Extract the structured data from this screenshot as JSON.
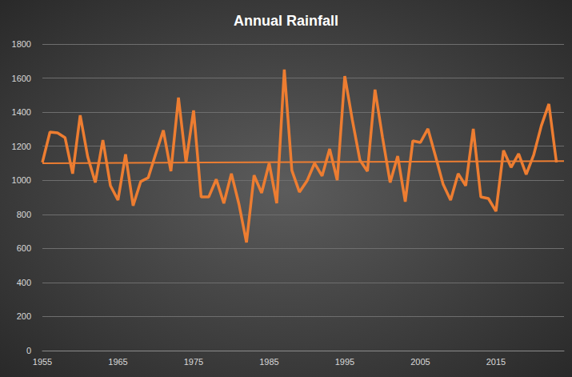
{
  "chart_data": {
    "type": "line",
    "title": "Annual Rainfall",
    "x": [
      1955,
      1956,
      1957,
      1958,
      1959,
      1960,
      1961,
      1962,
      1963,
      1964,
      1965,
      1966,
      1967,
      1968,
      1969,
      1970,
      1971,
      1972,
      1973,
      1974,
      1975,
      1976,
      1977,
      1978,
      1979,
      1980,
      1981,
      1982,
      1983,
      1984,
      1985,
      1986,
      1987,
      1988,
      1989,
      1990,
      1991,
      1992,
      1993,
      1994,
      1995,
      1996,
      1997,
      1998,
      1999,
      2000,
      2001,
      2002,
      2003,
      2004,
      2005,
      2006,
      2007,
      2008,
      2009,
      2010,
      2011,
      2012,
      2013,
      2014,
      2015,
      2016,
      2017,
      2018,
      2019,
      2020,
      2021,
      2022,
      2023
    ],
    "series": [
      {
        "color": "#ed7d31",
        "line_style": "solid",
        "marker": "none",
        "values": [
          1105,
          1283,
          1278,
          1250,
          1039,
          1382,
          1137,
          987,
          1236,
          968,
          884,
          1152,
          851,
          992,
          1015,
          1156,
          1293,
          1053,
          1485,
          1105,
          1410,
          902,
          902,
          1006,
          865,
          1039,
          860,
          635,
          1029,
          926,
          1100,
          865,
          1650,
          1058,
          931,
          996,
          1100,
          1025,
          1184,
          1001,
          1612,
          1354,
          1119,
          1053,
          1532,
          1250,
          987,
          1142,
          874,
          1231,
          1222,
          1302,
          1142,
          978,
          884,
          1039,
          968,
          1302,
          902,
          893,
          818,
          1175,
          1076,
          1156,
          1035,
          1150,
          1320,
          1448,
          1105
        ]
      },
      {
        "color": "#ed7d31",
        "line_style": "solid",
        "marker": "none",
        "x": [
          1955,
          2024
        ],
        "values": [
          1100,
          1113
        ]
      }
    ],
    "xlim": [
      1955,
      2024
    ],
    "xticks": [
      1955,
      1965,
      1975,
      1985,
      1995,
      2005,
      2015
    ],
    "ylim": [
      0,
      1800
    ],
    "yticks": [
      0,
      200,
      400,
      600,
      800,
      1000,
      1200,
      1400,
      1600,
      1800
    ],
    "grid": true
  }
}
